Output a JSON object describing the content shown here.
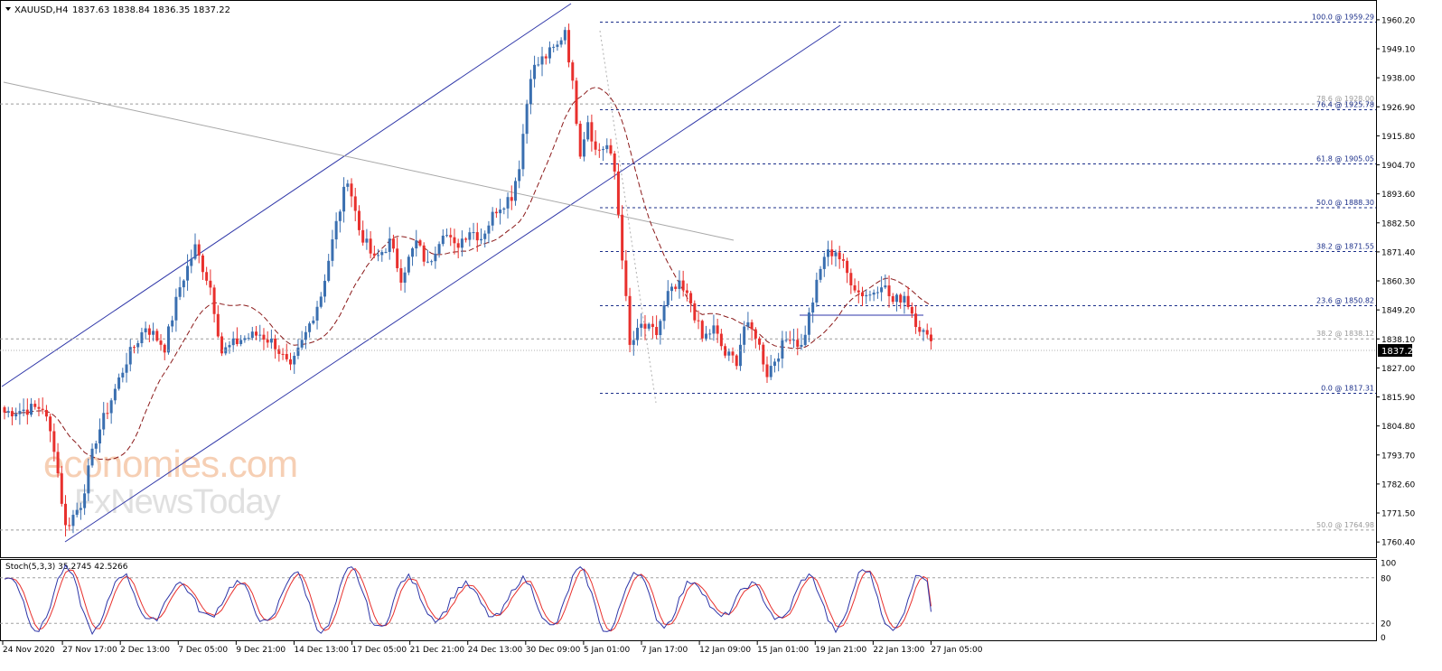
{
  "header": {
    "symbol_label": "XAUUSD,H4",
    "ohlc": "1837.63 1838.84 1836.35 1837.22"
  },
  "stoch_label": "Stoch(5,3,3) 35.2745 42.5266",
  "watermark": {
    "line1": "economies.com",
    "line2": "FxNewsToday"
  },
  "colors": {
    "bull": "#3a6fb0",
    "bear": "#e8302d",
    "ma": "#8b1a1a",
    "channel": "#2e36a8",
    "trend": "#a8a8a8",
    "fib": "#1b2f8a",
    "fib_faint": "#9a9a9a",
    "stoch_main": "#2e36a8",
    "stoch_signal": "#e8302d",
    "watermark": "#f3c7a8"
  },
  "chart_data": {
    "type": "candlestick",
    "symbol": "XAUUSD",
    "timeframe": "H4",
    "ylim": [
      1757,
      1965
    ],
    "y_ticks": [
      "1960.20",
      "1949.10",
      "1938.00",
      "1926.90",
      "1915.80",
      "1904.70",
      "1893.60",
      "1882.50",
      "1871.40",
      "1860.30",
      "1849.20",
      "1838.10",
      "1827.00",
      "1815.90",
      "1804.80",
      "1793.70",
      "1782.60",
      "1771.50",
      "1760.40"
    ],
    "current_price": "1837.22",
    "x_labels": [
      "24 Nov 2020",
      "27 Nov 17:00",
      "2 Dec 13:00",
      "7 Dec 05:00",
      "9 Dec 21:00",
      "14 Dec 13:00",
      "17 Dec 05:00",
      "21 Dec 21:00",
      "24 Dec 13:00",
      "30 Dec 09:00",
      "5 Jan 01:00",
      "7 Jan 17:00",
      "12 Jan 09:00",
      "15 Jan 01:00",
      "19 Jan 21:00",
      "22 Jan 13:00",
      "27 Jan 05:00"
    ],
    "anchors": [
      {
        "bar": 0,
        "price": 1810
      },
      {
        "bar": 10,
        "price": 1812
      },
      {
        "bar": 13,
        "price": 1797
      },
      {
        "bar": 16,
        "price": 1766
      },
      {
        "bar": 20,
        "price": 1775
      },
      {
        "bar": 24,
        "price": 1800
      },
      {
        "bar": 28,
        "price": 1815
      },
      {
        "bar": 32,
        "price": 1830
      },
      {
        "bar": 37,
        "price": 1843
      },
      {
        "bar": 42,
        "price": 1835
      },
      {
        "bar": 46,
        "price": 1858
      },
      {
        "bar": 50,
        "price": 1873
      },
      {
        "bar": 54,
        "price": 1858
      },
      {
        "bar": 57,
        "price": 1833
      },
      {
        "bar": 62,
        "price": 1838
      },
      {
        "bar": 67,
        "price": 1840
      },
      {
        "bar": 71,
        "price": 1836
      },
      {
        "bar": 75,
        "price": 1826
      },
      {
        "bar": 79,
        "price": 1840
      },
      {
        "bar": 83,
        "price": 1855
      },
      {
        "bar": 87,
        "price": 1882
      },
      {
        "bar": 90,
        "price": 1900
      },
      {
        "bar": 93,
        "price": 1880
      },
      {
        "bar": 97,
        "price": 1868
      },
      {
        "bar": 101,
        "price": 1875
      },
      {
        "bar": 104,
        "price": 1862
      },
      {
        "bar": 108,
        "price": 1875
      },
      {
        "bar": 111,
        "price": 1866
      },
      {
        "bar": 115,
        "price": 1880
      },
      {
        "bar": 118,
        "price": 1873
      },
      {
        "bar": 122,
        "price": 1880
      },
      {
        "bar": 125,
        "price": 1877
      },
      {
        "bar": 129,
        "price": 1888
      },
      {
        "bar": 133,
        "price": 1893
      },
      {
        "bar": 135,
        "price": 1905
      },
      {
        "bar": 138,
        "price": 1940
      },
      {
        "bar": 141,
        "price": 1945
      },
      {
        "bar": 145,
        "price": 1950
      },
      {
        "bar": 147,
        "price": 1957
      },
      {
        "bar": 149,
        "price": 1935
      },
      {
        "bar": 151,
        "price": 1910
      },
      {
        "bar": 153,
        "price": 1922
      },
      {
        "bar": 155,
        "price": 1910
      },
      {
        "bar": 158,
        "price": 1912
      },
      {
        "bar": 160,
        "price": 1902
      },
      {
        "bar": 162,
        "price": 1870
      },
      {
        "bar": 164,
        "price": 1835
      },
      {
        "bar": 167,
        "price": 1843
      },
      {
        "bar": 171,
        "price": 1840
      },
      {
        "bar": 174,
        "price": 1855
      },
      {
        "bar": 177,
        "price": 1858
      },
      {
        "bar": 180,
        "price": 1852
      },
      {
        "bar": 183,
        "price": 1838
      },
      {
        "bar": 186,
        "price": 1842
      },
      {
        "bar": 189,
        "price": 1832
      },
      {
        "bar": 192,
        "price": 1830
      },
      {
        "bar": 194,
        "price": 1843
      },
      {
        "bar": 197,
        "price": 1840
      },
      {
        "bar": 200,
        "price": 1825
      },
      {
        "bar": 203,
        "price": 1833
      },
      {
        "bar": 206,
        "price": 1840
      },
      {
        "bar": 209,
        "price": 1835
      },
      {
        "bar": 212,
        "price": 1853
      },
      {
        "bar": 215,
        "price": 1870
      },
      {
        "bar": 218,
        "price": 1872
      },
      {
        "bar": 221,
        "price": 1863
      },
      {
        "bar": 224,
        "price": 1856
      },
      {
        "bar": 227,
        "price": 1855
      },
      {
        "bar": 230,
        "price": 1860
      },
      {
        "bar": 233,
        "price": 1852
      },
      {
        "bar": 236,
        "price": 1855
      },
      {
        "bar": 239,
        "price": 1845
      },
      {
        "bar": 242,
        "price": 1838
      },
      {
        "bar": 243,
        "price": 1837.22
      }
    ],
    "fibonacci": [
      {
        "label": "100.0 @ 1959.29",
        "price": 1959.29,
        "style": "strong"
      },
      {
        "label": "78.6 @ 1928.00",
        "price": 1928.0,
        "style": "faint"
      },
      {
        "label": "76.4 @ 1925.78",
        "price": 1925.78,
        "style": "strong"
      },
      {
        "label": "61.8 @ 1905.05",
        "price": 1905.05,
        "style": "strong"
      },
      {
        "label": "50.0 @ 1888.30",
        "price": 1888.3,
        "style": "strong"
      },
      {
        "label": "38.2 @ 1871.55",
        "price": 1871.55,
        "style": "strong"
      },
      {
        "label": "23.6 @ 1850.82",
        "price": 1850.82,
        "style": "strong"
      },
      {
        "label": "38.2 @ 1838.12",
        "price": 1838.12,
        "style": "faint"
      },
      {
        "label": "0.0 @ 1817.31",
        "price": 1817.31,
        "style": "strong"
      },
      {
        "label": "50.0 @ 1764.98",
        "price": 1764.98,
        "style": "faint"
      }
    ],
    "stochastic": {
      "params": "5,3,3",
      "main": 35.2745,
      "signal": 42.5266,
      "levels": [
        80,
        20
      ],
      "y_ticks": [
        "100",
        "80",
        "20",
        "0"
      ]
    }
  }
}
